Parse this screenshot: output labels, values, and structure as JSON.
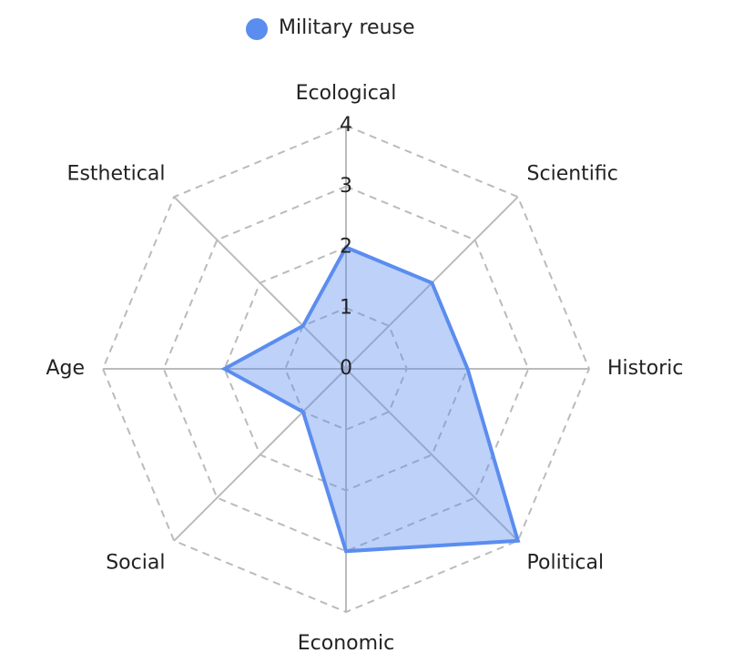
{
  "chart_data": {
    "type": "radar",
    "categories": [
      "Ecological",
      "Scientific",
      "Historic",
      "Political",
      "Economic",
      "Social",
      "Age",
      "Esthetical"
    ],
    "series": [
      {
        "name": "Military reuse",
        "color": "#5b8def",
        "values": [
          2,
          2,
          2,
          4,
          3,
          1,
          2,
          1
        ]
      }
    ],
    "ylim": [
      0,
      4
    ],
    "yticks": [
      0,
      1,
      2,
      3,
      4
    ],
    "grid": true,
    "legend": "top"
  }
}
